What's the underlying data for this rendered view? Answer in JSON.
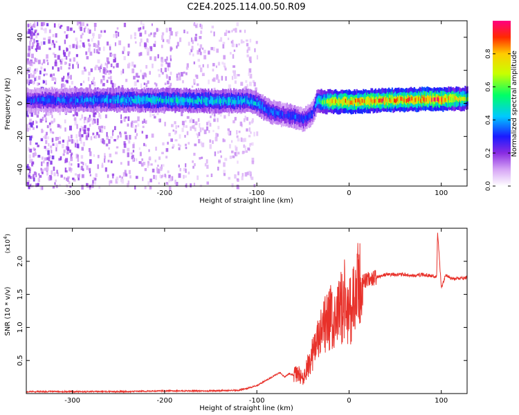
{
  "title": "C2E4.2025.114.00.50.R09",
  "colors": {
    "snr_line": "#e8312a",
    "spectrum_scale": [
      "#ffffff",
      "#f0d8fa",
      "#c79cf0",
      "#8a2be2",
      "#1010ff",
      "#00e0ff",
      "#00ff40",
      "#ffff00",
      "#ff0000",
      "#ff00ff"
    ]
  },
  "chart_data": [
    {
      "type": "heatmap",
      "title": "C2E4.2025.114.00.50.R09",
      "xlabel": "Height of straight line (km)",
      "ylabel": "Frequency (Hz)",
      "xlim": [
        -350,
        128
      ],
      "ylim": [
        -50,
        50
      ],
      "xticks": [
        -300,
        -200,
        -100,
        0,
        100
      ],
      "yticks": [
        -40,
        -20,
        0,
        20,
        40
      ],
      "xtick_labels": [
        "-300",
        "-200",
        "-100",
        "0",
        "100"
      ],
      "ytick_labels": [
        "-40",
        "-20",
        "0",
        "20",
        "40"
      ],
      "colorbar": {
        "label": "Normalized spectral amplitude",
        "range": [
          0.0,
          1.0
        ],
        "ticks": [
          0.0,
          0.2,
          0.4,
          0.6,
          0.8
        ],
        "tick_labels": [
          "0.0",
          "0.2",
          "0.4",
          "0.6",
          "0.8"
        ],
        "position": "right"
      },
      "ridge": {
        "x": [
          -350,
          -300,
          -250,
          -200,
          -150,
          -110,
          -100,
          -90,
          -80,
          -70,
          -60,
          -50,
          -40,
          -35,
          -30,
          -20,
          -10,
          0,
          20,
          50,
          80,
          100,
          128
        ],
        "y": [
          2,
          2,
          2,
          2,
          1.5,
          1.5,
          0,
          -4,
          -6,
          -7,
          -8,
          -10,
          -6,
          2,
          1,
          1,
          1,
          1,
          1.5,
          2,
          2.5,
          2.5,
          3
        ],
        "amplitude": [
          0.3,
          0.35,
          0.4,
          0.45,
          0.45,
          0.4,
          0.4,
          0.35,
          0.35,
          0.3,
          0.35,
          0.3,
          0.3,
          0.4,
          0.6,
          0.7,
          0.75,
          0.8,
          0.8,
          0.82,
          0.85,
          0.85,
          0.6
        ]
      },
      "background_noise_range_x": [
        -350,
        -100
      ],
      "grid": false
    },
    {
      "type": "line",
      "title": "",
      "xlabel": "Height of straight line (km)",
      "ylabel": "SNR (10 * v/v)",
      "y_multiplier_label": "(x10",
      "y_multiplier_exp": "4",
      "xlim": [
        -350,
        128
      ],
      "ylim": [
        0,
        2.5
      ],
      "xticks": [
        -300,
        -200,
        -100,
        0,
        100
      ],
      "yticks": [
        0.5,
        1.0,
        1.5,
        2.0
      ],
      "xtick_labels": [
        "-300",
        "-200",
        "-100",
        "0",
        "100"
      ],
      "ytick_labels": [
        "0.5",
        "1.0",
        "1.5",
        "2.0"
      ],
      "series": [
        {
          "x": [
            -350,
            -300,
            -250,
            -200,
            -150,
            -120,
            -110,
            -100,
            -90,
            -80,
            -75,
            -70,
            -65,
            -60,
            -55,
            -50,
            -45,
            -40,
            -35,
            -30,
            -25,
            -20,
            -15,
            -10,
            -5,
            0,
            5,
            10,
            15,
            20,
            25,
            30,
            40,
            50,
            60,
            70,
            80,
            90,
            95,
            96,
            100,
            105,
            110,
            115,
            120,
            128
          ],
          "y": [
            0.03,
            0.03,
            0.03,
            0.04,
            0.04,
            0.05,
            0.08,
            0.12,
            0.2,
            0.28,
            0.32,
            0.25,
            0.3,
            0.28,
            0.3,
            0.22,
            0.4,
            0.6,
            0.75,
            0.9,
            1.05,
            1.15,
            1.0,
            1.3,
            1.4,
            1.25,
            1.35,
            1.6,
            1.7,
            1.72,
            1.74,
            1.76,
            1.8,
            1.8,
            1.8,
            1.78,
            1.8,
            1.78,
            1.77,
            2.45,
            1.6,
            1.8,
            1.75,
            1.73,
            1.74,
            1.75
          ]
        }
      ],
      "grid": false
    }
  ]
}
